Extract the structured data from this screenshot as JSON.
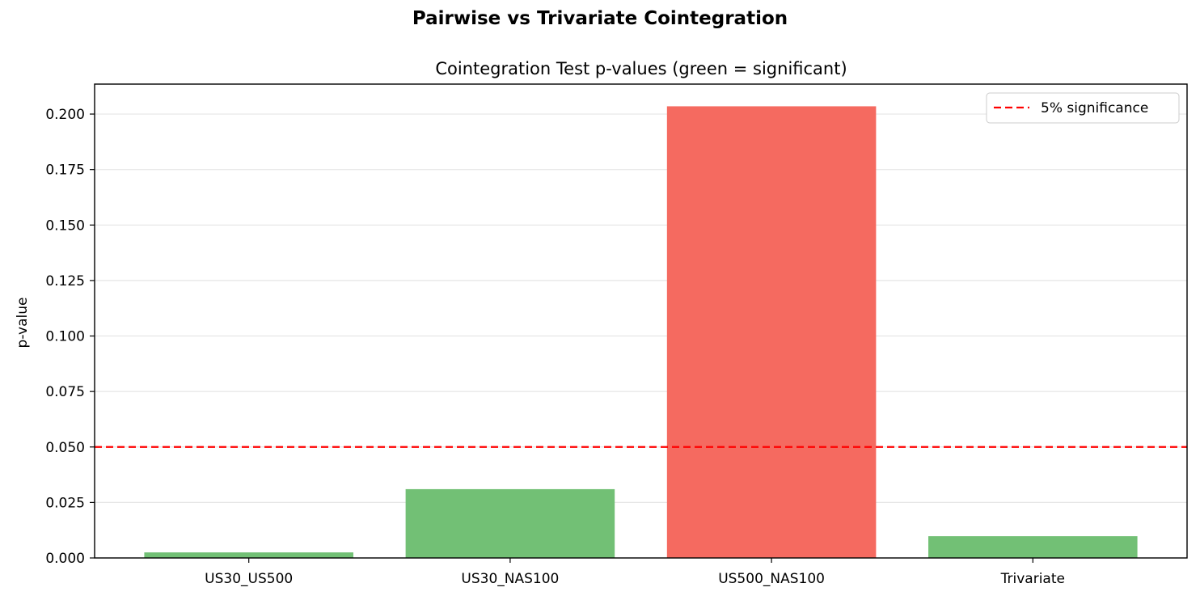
{
  "figure": {
    "suptitle": "Pairwise vs Trivariate Cointegration"
  },
  "chart_data": {
    "type": "bar",
    "title": "Cointegration Test p-values (green = significant)",
    "xlabel": "",
    "ylabel": "p-value",
    "categories": [
      "US30_US500",
      "US30_NAS100",
      "US500_NAS100",
      "Trivariate"
    ],
    "values": [
      0.0025,
      0.031,
      0.2035,
      0.0098
    ],
    "bar_colors": [
      "#72c075",
      "#72c075",
      "#f56a60",
      "#72c075"
    ],
    "ylim": [
      0,
      0.2135
    ],
    "yticks": [
      0.0,
      0.025,
      0.05,
      0.075,
      0.1,
      0.125,
      0.15,
      0.175,
      0.2
    ],
    "ytick_labels": [
      "0.000",
      "0.025",
      "0.050",
      "0.075",
      "0.100",
      "0.125",
      "0.150",
      "0.175",
      "0.200"
    ],
    "grid": "y",
    "reference_line": {
      "value": 0.05,
      "label": "5% significance",
      "color": "#ff0000",
      "style": "dashed"
    },
    "legend": {
      "placement": "top-right",
      "entries": [
        "5% significance"
      ]
    }
  }
}
